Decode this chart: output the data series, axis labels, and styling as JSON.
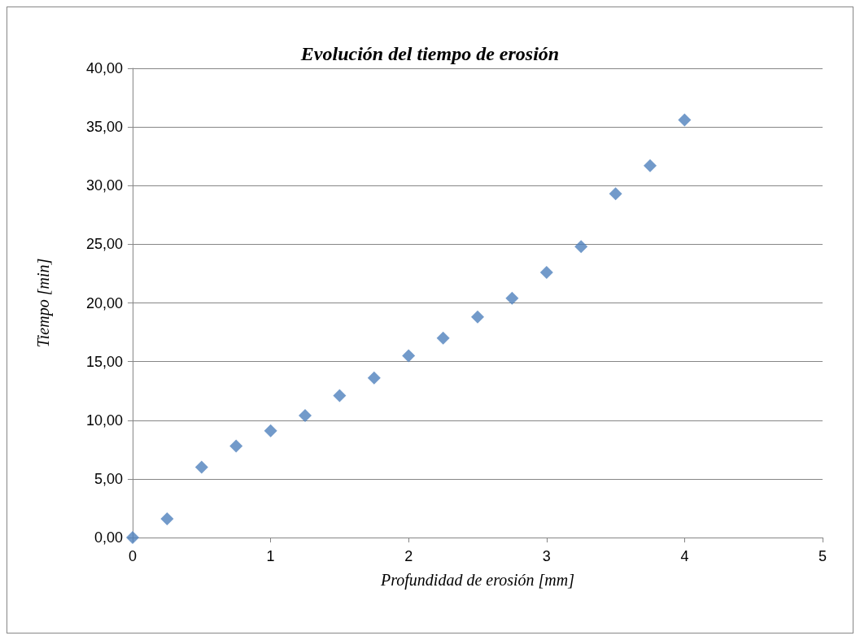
{
  "chart_data": {
    "type": "scatter",
    "title": "Evolución del tiempo de erosión",
    "xlabel": "Profundidad de erosión [mm]",
    "ylabel": "Tiempo [min]",
    "x": [
      0,
      0.25,
      0.5,
      0.75,
      1,
      1.25,
      1.5,
      1.75,
      2,
      2.25,
      2.5,
      2.75,
      3,
      3.25,
      3.5,
      3.75,
      4
    ],
    "values": [
      0,
      1.6,
      6.0,
      7.8,
      9.1,
      10.4,
      12.1,
      13.6,
      15.5,
      17.0,
      18.8,
      20.4,
      22.6,
      24.8,
      29.3,
      31.7,
      35.6
    ],
    "color": "#4f81bd",
    "marker": "diamond",
    "xlim": [
      0,
      5
    ],
    "xticks": [
      0,
      1,
      2,
      3,
      4,
      5
    ],
    "ylim": [
      0,
      40
    ],
    "yticks": [
      {
        "value": 0,
        "label": "0,00"
      },
      {
        "value": 5,
        "label": "5,00"
      },
      {
        "value": 10,
        "label": "10,00"
      },
      {
        "value": 15,
        "label": "15,00"
      },
      {
        "value": 20,
        "label": "20,00"
      },
      {
        "value": 25,
        "label": "25,00"
      },
      {
        "value": 30,
        "label": "30,00"
      },
      {
        "value": 35,
        "label": "35,00"
      },
      {
        "value": 40,
        "label": "40,00"
      }
    ],
    "grid": "y"
  }
}
